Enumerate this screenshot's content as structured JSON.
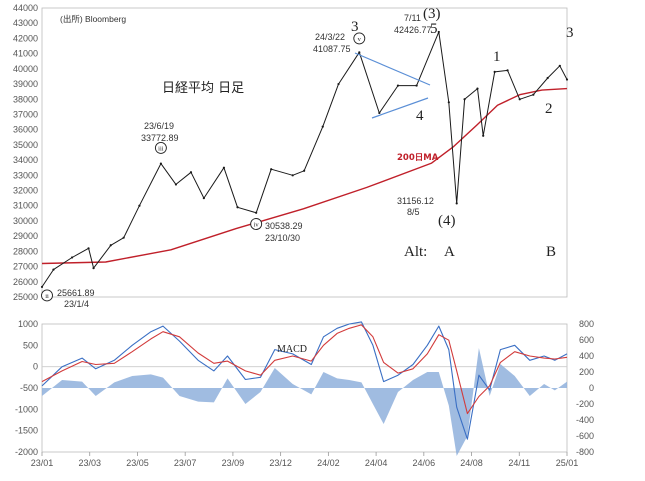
{
  "chart_data": {
    "type": "line",
    "source_note": "(出所) Bloomberg",
    "price_title": "日経平均 日足",
    "macd_title": "MACD",
    "ma_label": "200日MA",
    "price_axis": {
      "ylim": [
        25000,
        44000
      ],
      "ticks": [
        "44000",
        "43000",
        "42000",
        "41000",
        "40000",
        "39000",
        "38000",
        "37000",
        "36000",
        "35000",
        "34000",
        "33000",
        "32000",
        "31000",
        "30000",
        "29000",
        "28000",
        "27000",
        "26000",
        "25000"
      ]
    },
    "macd_axis": {
      "left_ylim": [
        -2000,
        1000
      ],
      "left_ticks": [
        "1000",
        "500",
        "0",
        "-500",
        "-1000",
        "-1500",
        "-2000"
      ],
      "right_ylim": [
        -800,
        800
      ],
      "right_ticks": [
        "800",
        "600",
        "400",
        "200",
        "0",
        "-200",
        "-400",
        "-600",
        "-800"
      ]
    },
    "x_ticks": [
      "23/01",
      "23/03",
      "23/05",
      "23/07",
      "23/09",
      "23/12",
      "24/02",
      "24/04",
      "24/06",
      "24/08",
      "24/11",
      "25/01"
    ],
    "price_series": {
      "x": [
        "2023-01-04",
        "2023-01-20",
        "2023-02-15",
        "2023-03-10",
        "2023-03-17",
        "2023-04-10",
        "2023-04-28",
        "2023-05-20",
        "2023-06-19",
        "2023-07-10",
        "2023-07-31",
        "2023-08-18",
        "2023-09-15",
        "2023-10-04",
        "2023-10-30",
        "2023-11-20",
        "2023-12-20",
        "2024-01-05",
        "2024-01-31",
        "2024-02-22",
        "2024-03-22",
        "2024-04-19",
        "2024-05-15",
        "2024-06-10",
        "2024-07-11",
        "2024-07-25",
        "2024-08-05",
        "2024-08-16",
        "2024-09-03",
        "2024-09-11",
        "2024-09-27",
        "2024-10-15",
        "2024-11-01",
        "2024-11-20",
        "2024-12-10",
        "2024-12-27",
        "2025-01-06"
      ],
      "y": [
        25661.89,
        26800,
        27600,
        28200,
        26900,
        28400,
        28900,
        31000,
        33772.89,
        32400,
        33200,
        31500,
        33500,
        30900,
        30538.29,
        33400,
        33000,
        33300,
        36200,
        39000,
        41087.75,
        37100,
        38900,
        38900,
        42426.77,
        37800,
        31156.12,
        38000,
        38700,
        35600,
        39800,
        39900,
        38000,
        38300,
        39400,
        40200,
        39300
      ]
    },
    "ma200_series": {
      "x": [
        "2023-01-04",
        "2023-04-03",
        "2023-07-03",
        "2023-10-02",
        "2024-01-04",
        "2024-04-01",
        "2024-07-01",
        "2024-08-01",
        "2024-09-02",
        "2024-10-01",
        "2024-11-01",
        "2024-12-02",
        "2025-01-06"
      ],
      "y": [
        27200,
        27300,
        28100,
        29500,
        30800,
        32200,
        33800,
        34900,
        36300,
        37600,
        38300,
        38600,
        38700
      ]
    },
    "macd_series": {
      "x": [
        "2023-01-04",
        "2023-02-01",
        "2023-03-01",
        "2023-03-20",
        "2023-04-15",
        "2023-05-10",
        "2023-06-05",
        "2023-06-22",
        "2023-07-15",
        "2023-08-10",
        "2023-09-01",
        "2023-09-20",
        "2023-10-15",
        "2023-11-05",
        "2023-11-25",
        "2023-12-20",
        "2024-01-15",
        "2024-02-01",
        "2024-02-20",
        "2024-03-08",
        "2024-03-25",
        "2024-04-10",
        "2024-04-25",
        "2024-05-15",
        "2024-06-05",
        "2024-06-25",
        "2024-07-11",
        "2024-07-25",
        "2024-08-05",
        "2024-08-20",
        "2024-09-05",
        "2024-09-20",
        "2024-10-05",
        "2024-10-25",
        "2024-11-15",
        "2024-12-05",
        "2024-12-20",
        "2025-01-06"
      ],
      "macd": [
        -450,
        0,
        200,
        -50,
        150,
        500,
        820,
        950,
        600,
        150,
        -100,
        250,
        -300,
        -250,
        400,
        300,
        50,
        700,
        900,
        1000,
        1050,
        500,
        -350,
        -200,
        50,
        500,
        950,
        400,
        -950,
        -1700,
        -200,
        -550,
        400,
        500,
        150,
        250,
        150,
        300
      ],
      "signal": [
        -350,
        -100,
        120,
        50,
        80,
        350,
        650,
        820,
        700,
        320,
        80,
        130,
        -100,
        -200,
        150,
        250,
        130,
        500,
        780,
        900,
        980,
        700,
        100,
        -150,
        -50,
        300,
        750,
        620,
        -100,
        -1100,
        -700,
        -450,
        100,
        350,
        250,
        200,
        180,
        220
      ],
      "histogram": [
        -100,
        100,
        80,
        -100,
        70,
        150,
        170,
        130,
        -100,
        -170,
        -180,
        120,
        -200,
        -50,
        250,
        50,
        -80,
        200,
        120,
        100,
        70,
        -200,
        -450,
        -50,
        100,
        200,
        200,
        -220,
        -850,
        -600,
        500,
        -100,
        300,
        150,
        -100,
        50,
        -30,
        80
      ]
    },
    "annotations": [
      {
        "text": "25661.89",
        "date": "2023-01-04",
        "value": 25661.89
      },
      {
        "text": "23/1/4",
        "date": "2023-01-04",
        "value": 25661.89
      },
      {
        "text": "23/6/19",
        "date": "2023-06-19",
        "value": 33772.89
      },
      {
        "text": "33772.89",
        "date": "2023-06-19",
        "value": 33772.89
      },
      {
        "text": "30538.29",
        "date": "2023-10-30",
        "value": 30538.29
      },
      {
        "text": "23/10/30",
        "date": "2023-10-30",
        "value": 30538.29
      },
      {
        "text": "24/3/22",
        "date": "2024-03-22",
        "value": 41087.75
      },
      {
        "text": "41087.75",
        "date": "2024-03-22",
        "value": 41087.75
      },
      {
        "text": "7/11",
        "date": "2024-07-11",
        "value": 42426.77
      },
      {
        "text": "42426.77",
        "date": "2024-07-11",
        "value": 42426.77
      },
      {
        "text": "31156.12",
        "date": "2024-08-05",
        "value": 31156.12
      },
      {
        "text": "8/5",
        "date": "2024-08-05",
        "value": 31156.12
      }
    ],
    "circled_markers": [
      "ii",
      "iii",
      "iv",
      "v"
    ],
    "wave_labels": [
      "3",
      "(3)",
      "5",
      "4",
      "(4)",
      "1",
      "2",
      "3"
    ],
    "alt_labels": [
      "Alt:",
      "A",
      "B"
    ],
    "colors": {
      "price": "#1a1a1a",
      "ma200": "#c0202a",
      "macd": "#3a6fc4",
      "signal": "#d23b3b",
      "histogram": "#8fb0dc",
      "ma_label": "#c0202a",
      "triangle": "#5b8fd6",
      "grid": "#dcdcdc"
    }
  }
}
